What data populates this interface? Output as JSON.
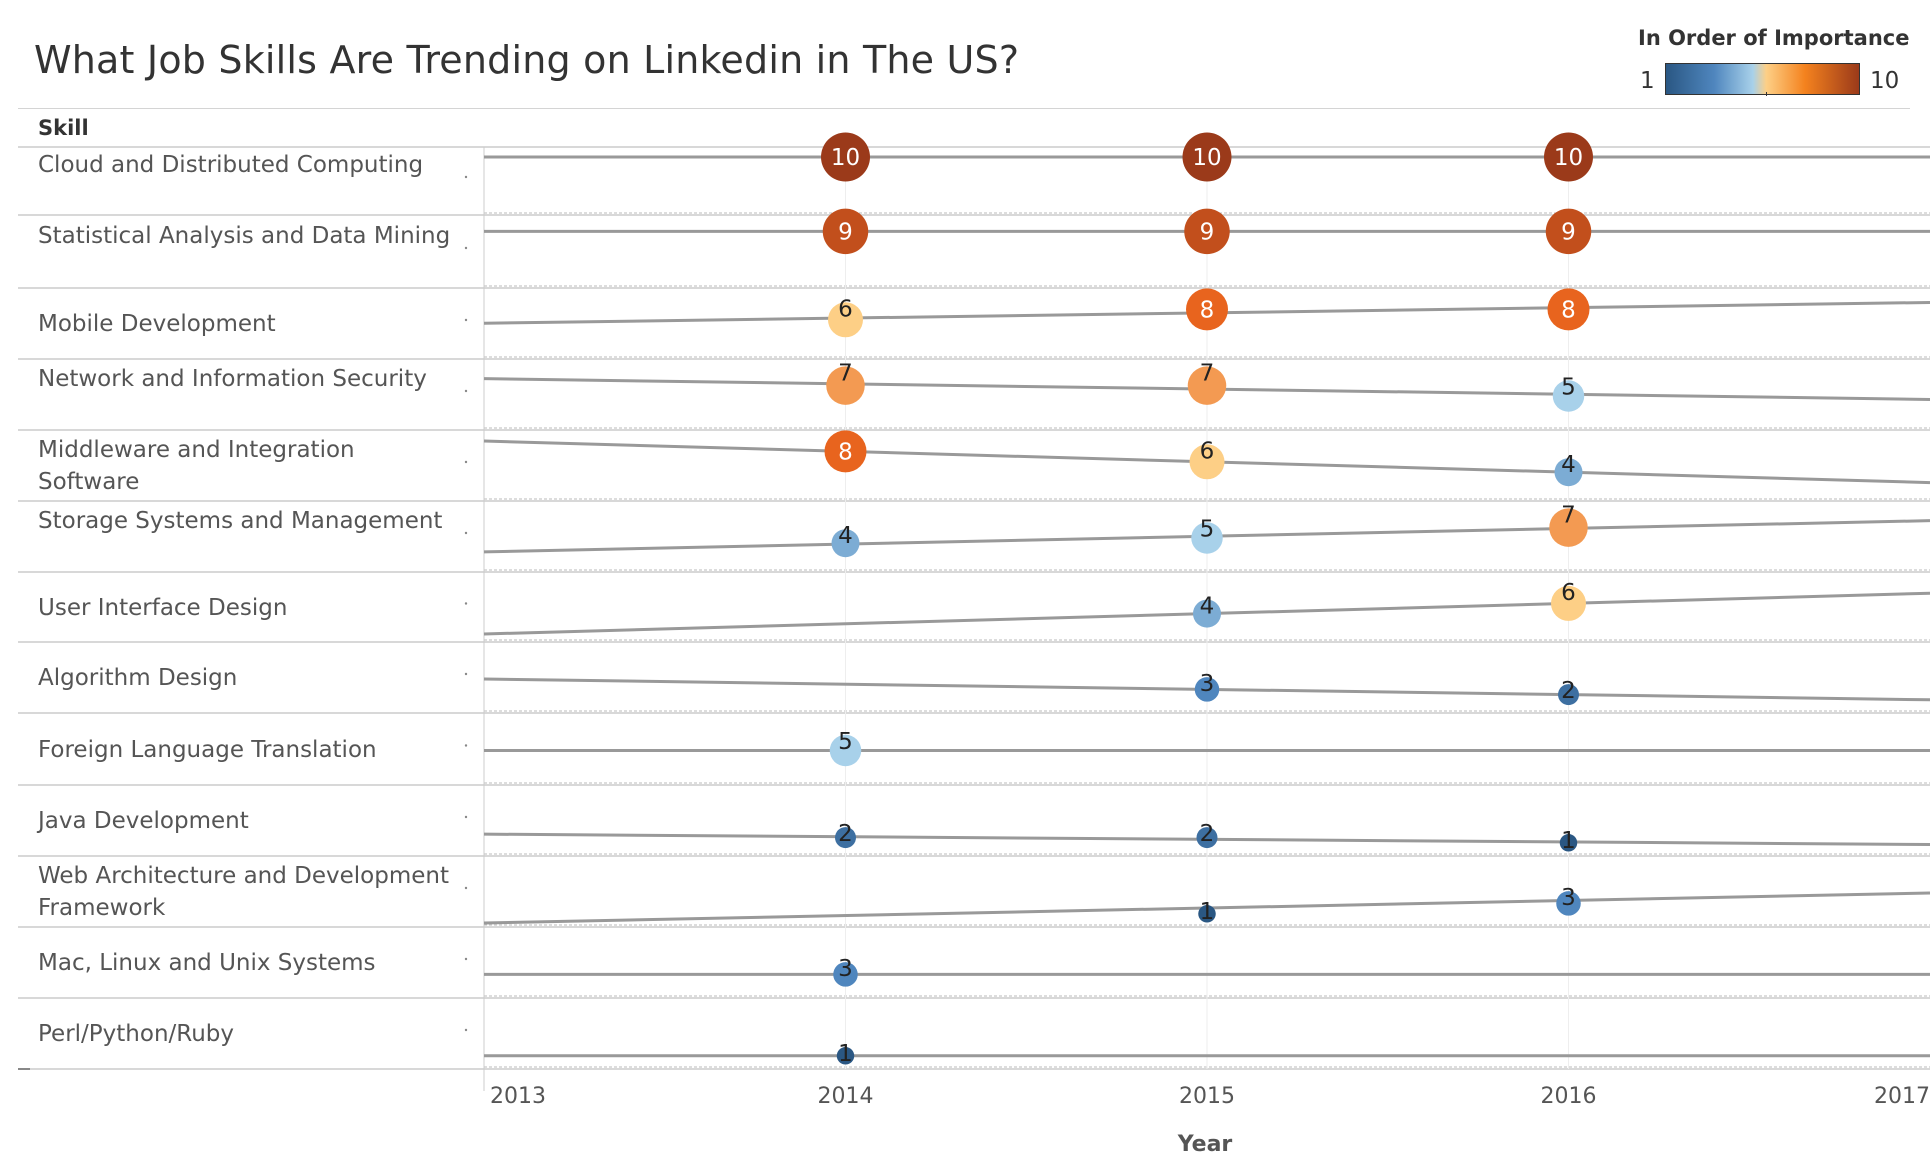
{
  "title": "What Job Skills Are Trending on Linkedin in The US?",
  "legend": {
    "title": "In Order of Importance",
    "min_label": "1",
    "max_label": "10",
    "colors": [
      "#2a5783",
      "#4f86be",
      "#a8d1ea",
      "#fdcf86",
      "#f4821e",
      "#9b3a1a"
    ]
  },
  "chart_data": {
    "type": "scatter",
    "title": "What Job Skills Are Trending on Linkedin in The US?",
    "row_header": "Skill",
    "xlabel": "Year",
    "xlim": [
      2013,
      2017
    ],
    "x_ticks": [
      "2013",
      "2014",
      "2015",
      "2016",
      "2017"
    ],
    "color_scale": "rank 1 (dark blue) to 10 (dark orange)",
    "size_scale": "rank",
    "trend_lines": true,
    "rows": [
      {
        "skill": "Cloud and Distributed Computing",
        "points": [
          {
            "x": 2014,
            "y": 10
          },
          {
            "x": 2015,
            "y": 10
          },
          {
            "x": 2016,
            "y": 10
          }
        ]
      },
      {
        "skill": "Statistical Analysis and Data Mining",
        "points": [
          {
            "x": 2014,
            "y": 9
          },
          {
            "x": 2015,
            "y": 9
          },
          {
            "x": 2016,
            "y": 9
          }
        ]
      },
      {
        "skill": "Mobile Development",
        "points": [
          {
            "x": 2014,
            "y": 6
          },
          {
            "x": 2015,
            "y": 8
          },
          {
            "x": 2016,
            "y": 8
          }
        ]
      },
      {
        "skill": "Network and Information Security",
        "points": [
          {
            "x": 2014,
            "y": 7
          },
          {
            "x": 2015,
            "y": 7
          },
          {
            "x": 2016,
            "y": 5
          }
        ]
      },
      {
        "skill": "Middleware and Integration Software",
        "points": [
          {
            "x": 2014,
            "y": 8
          },
          {
            "x": 2015,
            "y": 6
          },
          {
            "x": 2016,
            "y": 4
          }
        ]
      },
      {
        "skill": "Storage Systems and Management",
        "points": [
          {
            "x": 2014,
            "y": 4
          },
          {
            "x": 2015,
            "y": 5
          },
          {
            "x": 2016,
            "y": 7
          }
        ]
      },
      {
        "skill": "User Interface Design",
        "points": [
          {
            "x": 2015,
            "y": 4
          },
          {
            "x": 2016,
            "y": 6
          }
        ]
      },
      {
        "skill": "Algorithm Design",
        "points": [
          {
            "x": 2015,
            "y": 3
          },
          {
            "x": 2016,
            "y": 2
          }
        ]
      },
      {
        "skill": "Foreign Language Translation",
        "points": [
          {
            "x": 2014,
            "y": 5
          }
        ]
      },
      {
        "skill": "Java Development",
        "points": [
          {
            "x": 2014,
            "y": 2
          },
          {
            "x": 2015,
            "y": 2
          },
          {
            "x": 2016,
            "y": 1
          }
        ]
      },
      {
        "skill": "Web Architecture and Development Framework",
        "points": [
          {
            "x": 2015,
            "y": 1
          },
          {
            "x": 2016,
            "y": 3
          }
        ]
      },
      {
        "skill": "Mac, Linux and Unix Systems",
        "points": [
          {
            "x": 2014,
            "y": 3
          }
        ]
      },
      {
        "skill": "Perl/Python/Ruby",
        "points": [
          {
            "x": 2014,
            "y": 1
          }
        ]
      }
    ]
  }
}
